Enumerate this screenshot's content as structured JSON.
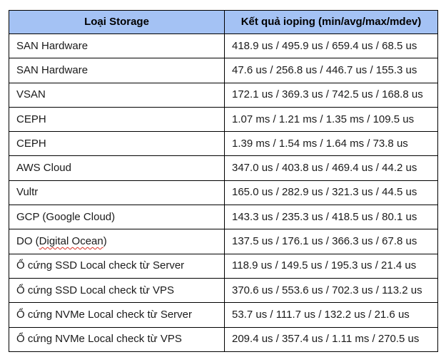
{
  "table": {
    "headers": {
      "storage": "Loại Storage",
      "result": "Kết quả ioping (min/avg/max/mdev)"
    },
    "rows": [
      {
        "storage": "SAN Hardware",
        "result": "418.9 us / 495.9 us / 659.4 us / 68.5 us"
      },
      {
        "storage": "SAN Hardware",
        "result": "47.6 us / 256.8 us / 446.7 us / 155.3 us"
      },
      {
        "storage": "VSAN",
        "result": "172.1 us / 369.3 us / 742.5 us / 168.8 us"
      },
      {
        "storage": "CEPH",
        "result": "1.07 ms / 1.21 ms / 1.35 ms / 109.5 us"
      },
      {
        "storage": "CEPH",
        "result": "1.39 ms / 1.54 ms / 1.64 ms / 73.8 us"
      },
      {
        "storage": "AWS Cloud",
        "result": "347.0 us / 403.8 us / 469.4 us / 44.2 us"
      },
      {
        "storage": "Vultr",
        "result": "165.0 us / 282.9 us / 321.3 us / 44.5 us"
      },
      {
        "storage": "GCP (Google Cloud)",
        "result": "143.3 us / 235.3 us / 418.5 us / 80.1 us"
      },
      {
        "storage_parts": [
          {
            "text": "DO ("
          },
          {
            "text": "Digital Ocean",
            "misspelled": true
          },
          {
            "text": ")"
          }
        ],
        "result": "137.5 us / 176.1 us / 366.3 us / 67.8 us"
      },
      {
        "storage": "Ổ cứng SSD Local check từ Server",
        "result": "118.9 us / 149.5 us / 195.3 us / 21.4 us"
      },
      {
        "storage": "Ổ cứng SSD Local check từ VPS",
        "result": "370.6 us / 553.6 us / 702.3 us / 113.2 us"
      },
      {
        "storage": "Ổ cứng NVMe Local check từ Server",
        "result": "53.7 us / 111.7 us / 132.2 us / 21.6 us"
      },
      {
        "storage": "Ổ cứng NVMe Local check từ VPS",
        "result": "209.4 us / 357.4 us / 1.11 ms / 270.5 us"
      }
    ],
    "colors": {
      "header_background": "#a4c2f4",
      "border": "#000000",
      "text": "#1a1a1a",
      "spellcheck_underline": "#d93025"
    }
  }
}
